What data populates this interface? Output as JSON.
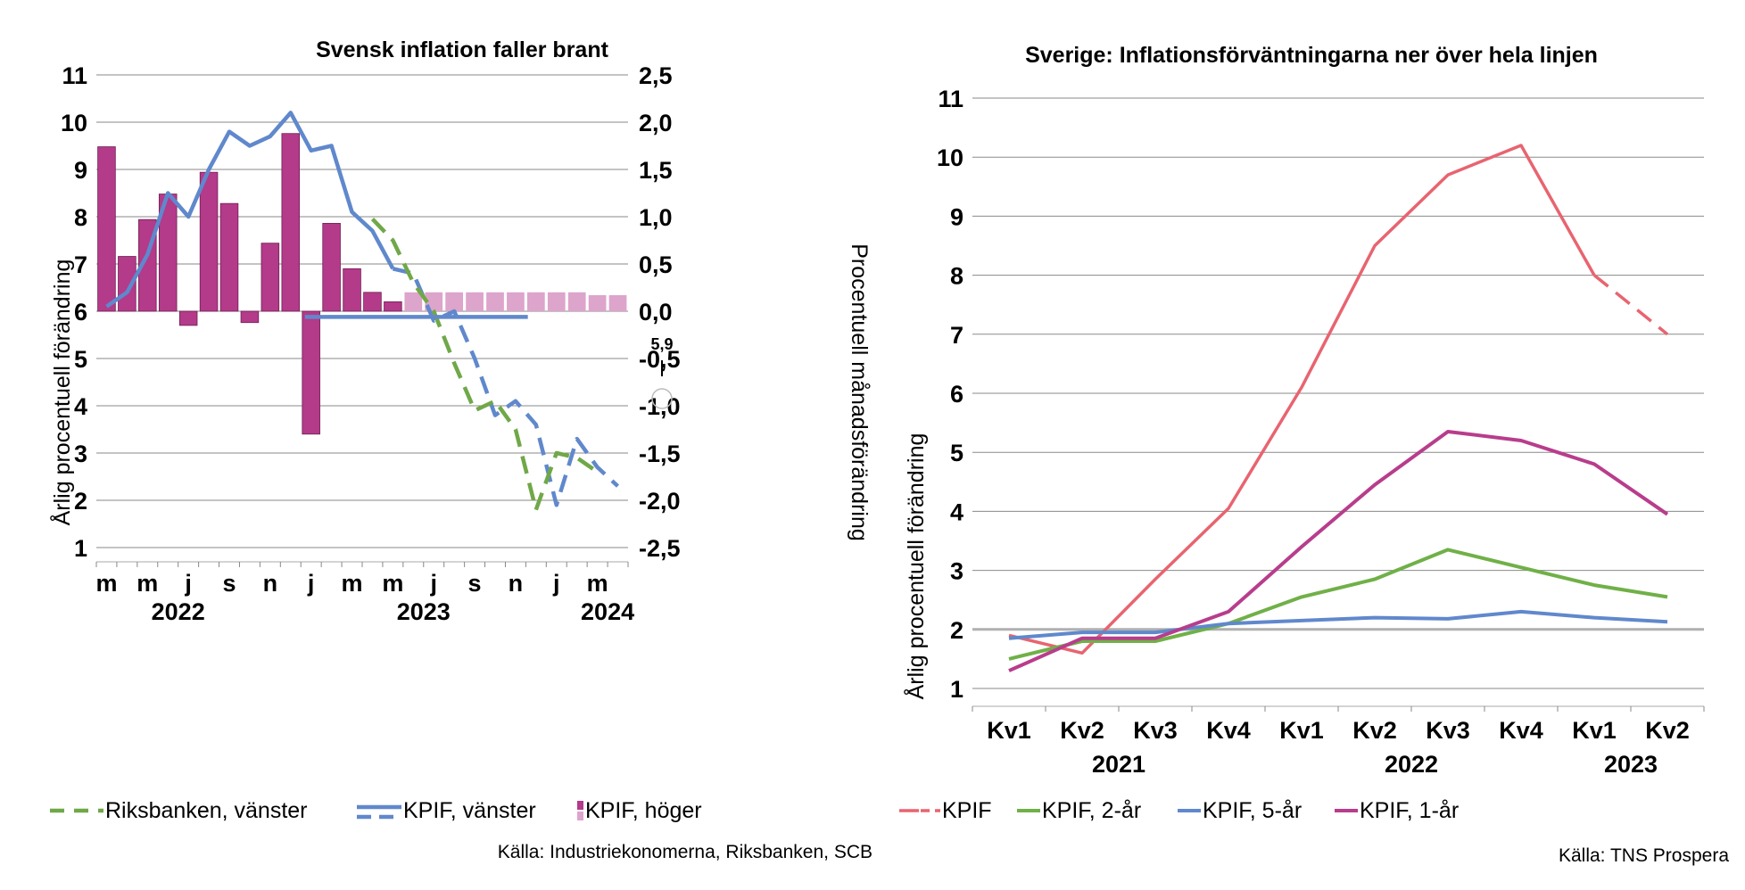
{
  "chart_data": [
    {
      "type": "bar+line",
      "title": "Svensk inflation faller brant",
      "ylabel": "Årlig procentuell förändring",
      "y2label": "Procentuell månadsförändring",
      "ylim": [
        1,
        11
      ],
      "y2lim": [
        -2.5,
        2.5
      ],
      "yticks": [
        "1",
        "2",
        "3",
        "4",
        "5",
        "6",
        "7",
        "8",
        "9",
        "10",
        "11"
      ],
      "y2ticks": [
        "-2,5",
        "-2,0",
        "-1,5",
        "-1,0",
        "-0,5",
        "0,0",
        "0,5",
        "1,0",
        "1,5",
        "2,0",
        "2,5"
      ],
      "xticks": [
        "m",
        "m",
        "j",
        "s",
        "n",
        "j",
        "m",
        "m",
        "j",
        "s",
        "n",
        "j",
        "m"
      ],
      "years": [
        "2022",
        "2023",
        "2024"
      ],
      "series": [
        {
          "name": "KPIF, höger",
          "kind": "bar",
          "axis": "right",
          "color": "#B43A8A",
          "values": [
            1.74,
            0.58,
            0.97,
            1.24,
            -0.15,
            1.47,
            1.14,
            -0.12,
            0.72,
            1.88,
            -1.3,
            0.93,
            0.45,
            0.2,
            0.1
          ]
        },
        {
          "name": "KPIF, höger (prognos)",
          "kind": "bar",
          "axis": "right",
          "color": "#DDA4CC",
          "values": [
            0.2,
            0.2,
            0.2,
            0.2,
            0.2,
            0.2,
            0.2,
            0.2,
            0.2,
            0.17,
            0.17
          ]
        },
        {
          "name": "KPIF, vänster",
          "kind": "line",
          "axis": "left",
          "color": "#6088CC",
          "values": [
            6.1,
            6.4,
            7.2,
            8.5,
            8.0,
            9.0,
            9.8,
            9.5,
            9.7,
            10.2,
            9.4,
            9.5,
            8.1,
            7.7,
            6.9
          ]
        },
        {
          "name": "KPIF, vänster (prognos)",
          "kind": "line",
          "axis": "left",
          "color": "#6088CC",
          "values": [
            6.8,
            5.8,
            6.0,
            5.0,
            3.8,
            4.1,
            3.6,
            1.9,
            3.3,
            2.7,
            2.3
          ]
        },
        {
          "name": "Riksbanken, vänster",
          "kind": "line",
          "axis": "left",
          "color": "#70A848",
          "values": [
            7.95,
            7.5,
            6.6,
            6.0,
            4.9,
            3.9,
            4.1,
            3.5,
            1.8,
            3.0,
            2.9,
            2.6
          ]
        }
      ],
      "annotations": [
        {
          "text": "5,9"
        }
      ],
      "legend": [
        "Riksbanken, vänster",
        "KPIF, vänster",
        "KPIF, höger"
      ],
      "source": "Källa: Industriekonomerna, Riksbanken, SCB"
    },
    {
      "type": "line",
      "title": "Sverige: Inflationsförväntningarna ner över hela linjen",
      "ylabel": "Årlig procentuell förändring",
      "ylim": [
        1,
        11
      ],
      "yticks": [
        "1",
        "2",
        "3",
        "4",
        "5",
        "6",
        "7",
        "8",
        "9",
        "10",
        "11"
      ],
      "categories": [
        "Kv1",
        "Kv2",
        "Kv3",
        "Kv4",
        "Kv1",
        "Kv2",
        "Kv3",
        "Kv4",
        "Kv1",
        "Kv2"
      ],
      "years": [
        "2021",
        "2022",
        "2023"
      ],
      "series": [
        {
          "name": "KPIF",
          "color": "#E86470",
          "values": [
            1.9,
            1.6,
            2.85,
            4.05,
            6.1,
            8.5,
            9.7,
            10.2,
            8.0,
            7.0
          ]
        },
        {
          "name": "KPIF, 2-år",
          "color": "#70B048",
          "values": [
            1.5,
            1.8,
            1.8,
            2.1,
            2.55,
            2.85,
            3.35,
            3.05,
            2.75,
            2.55
          ]
        },
        {
          "name": "KPIF, 5-år",
          "color": "#6088CC",
          "values": [
            1.85,
            1.95,
            1.95,
            2.1,
            2.15,
            2.2,
            2.18,
            2.3,
            2.2,
            2.13
          ]
        },
        {
          "name": "KPIF, 1-år",
          "color": "#B83D8C",
          "values": [
            1.3,
            1.85,
            1.85,
            2.3,
            3.4,
            4.45,
            5.35,
            5.2,
            4.8,
            3.95
          ]
        }
      ],
      "legend": [
        "KPIF",
        "KPIF, 2-år",
        "KPIF, 5-år",
        "KPIF, 1-år"
      ],
      "source": "Källa: TNS Prospera"
    }
  ]
}
